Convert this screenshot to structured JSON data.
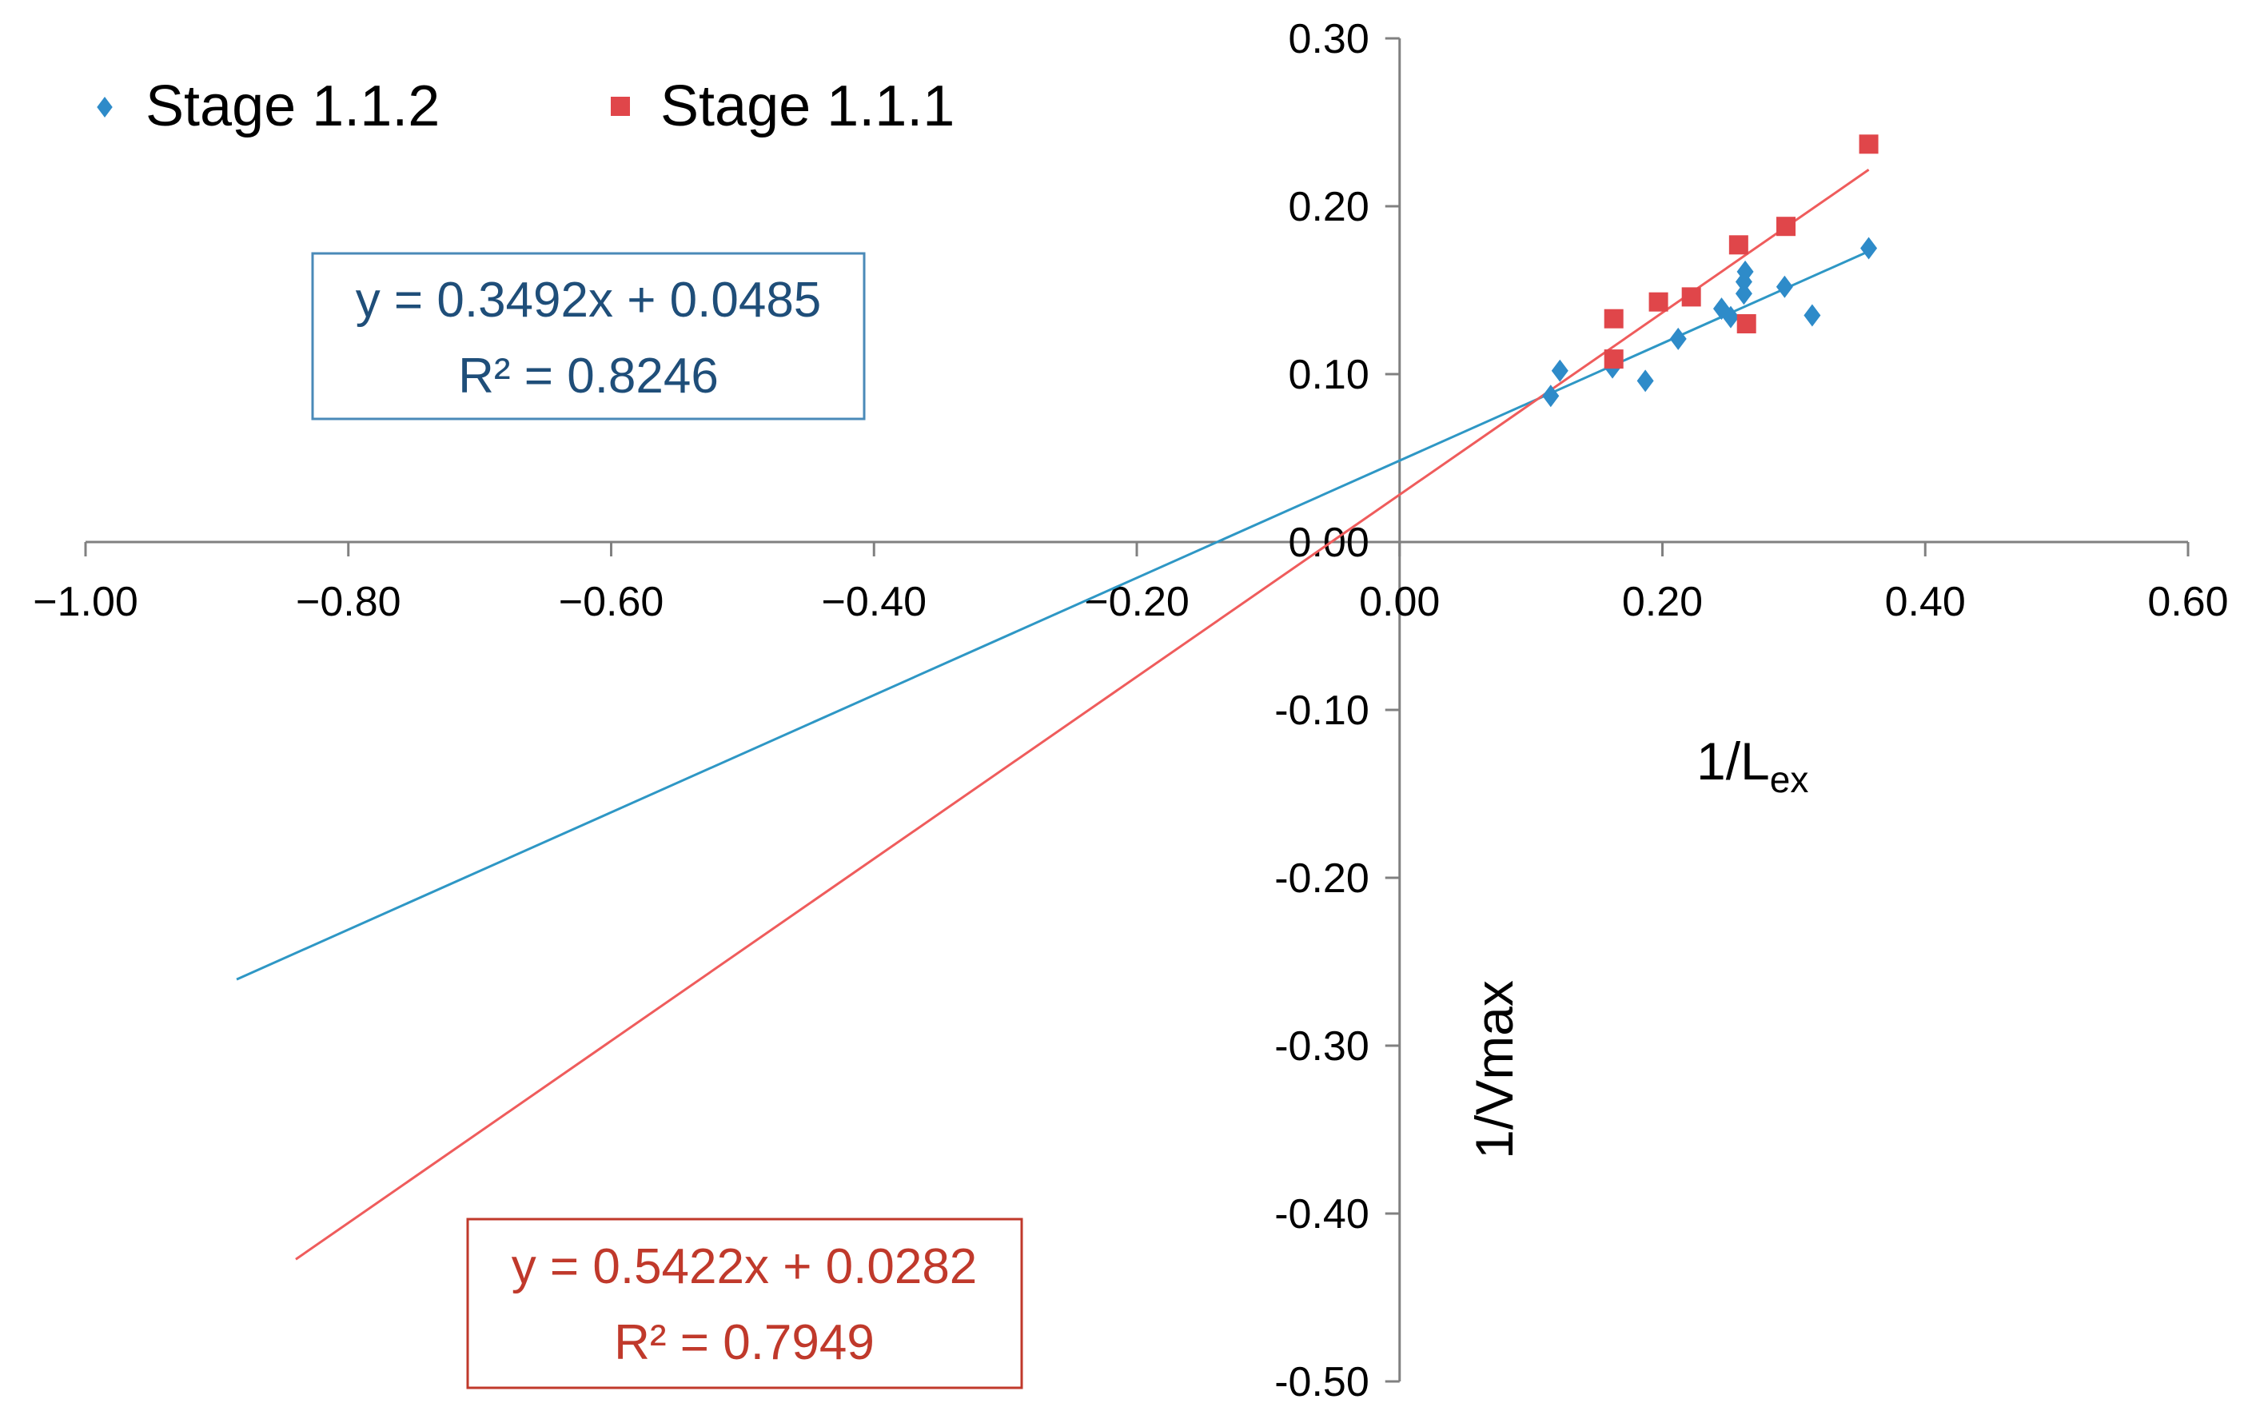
{
  "chart_data": {
    "type": "scatter",
    "title": "",
    "xlabel": "1/L",
    "xlabel_sub": "ex",
    "ylabel": "1/Vmax",
    "xlim": [
      -1.0,
      0.6
    ],
    "ylim": [
      -0.5,
      0.3
    ],
    "x_ticks": [
      -1.0,
      -0.8,
      -0.6,
      -0.4,
      -0.2,
      0.0,
      0.2,
      0.4,
      0.6
    ],
    "x_tick_labels": [
      "−1.00",
      "−0.80",
      "−0.60",
      "−0.40",
      "−0.20",
      "0.00",
      "0.20",
      "0.40",
      "0.60"
    ],
    "y_ticks": [
      0.3,
      0.2,
      0.1,
      0.0,
      -0.1,
      -0.2,
      -0.3,
      -0.4,
      -0.5
    ],
    "y_tick_labels": [
      "0.30",
      "0.20",
      "0.10",
      "0.00",
      "-0.10",
      "-0.20",
      "-0.30",
      "-0.40",
      "-0.50"
    ],
    "grid": false,
    "legend_position": "top-left",
    "series": [
      {
        "name": "Stage 1.1.2",
        "color": "#2e8bc9",
        "marker": "diamond",
        "points": [
          {
            "x": 0.115,
            "y": 0.087
          },
          {
            "x": 0.122,
            "y": 0.102
          },
          {
            "x": 0.162,
            "y": 0.104
          },
          {
            "x": 0.187,
            "y": 0.096
          },
          {
            "x": 0.212,
            "y": 0.121
          },
          {
            "x": 0.245,
            "y": 0.139
          },
          {
            "x": 0.252,
            "y": 0.134
          },
          {
            "x": 0.262,
            "y": 0.148
          },
          {
            "x": 0.262,
            "y": 0.155
          },
          {
            "x": 0.263,
            "y": 0.161
          },
          {
            "x": 0.293,
            "y": 0.152
          },
          {
            "x": 0.314,
            "y": 0.135
          },
          {
            "x": 0.357,
            "y": 0.175
          }
        ],
        "trendline": {
          "slope": 0.3492,
          "intercept": 0.0485,
          "x_range": [
            -0.885,
            0.357
          ],
          "color": "#2e97c5",
          "equation": "y = 0.3492x + 0.0485",
          "r2": "R² = 0.8246",
          "label_color": "#1f4e79"
        }
      },
      {
        "name": "Stage 1.1.1",
        "color": "#e0464a",
        "marker": "square",
        "points": [
          {
            "x": 0.163,
            "y": 0.133
          },
          {
            "x": 0.163,
            "y": 0.109
          },
          {
            "x": 0.197,
            "y": 0.143
          },
          {
            "x": 0.222,
            "y": 0.146
          },
          {
            "x": 0.258,
            "y": 0.177
          },
          {
            "x": 0.264,
            "y": 0.13
          },
          {
            "x": 0.294,
            "y": 0.188
          },
          {
            "x": 0.357,
            "y": 0.237
          }
        ],
        "trendline": {
          "slope": 0.5422,
          "intercept": 0.0282,
          "x_range": [
            -0.84,
            0.357
          ],
          "color": "#ef5c5c",
          "equation": "y = 0.5422x + 0.0282",
          "r2": "R² = 0.7949",
          "label_color": "#c0392b"
        }
      }
    ],
    "axis_color": "#808080"
  }
}
